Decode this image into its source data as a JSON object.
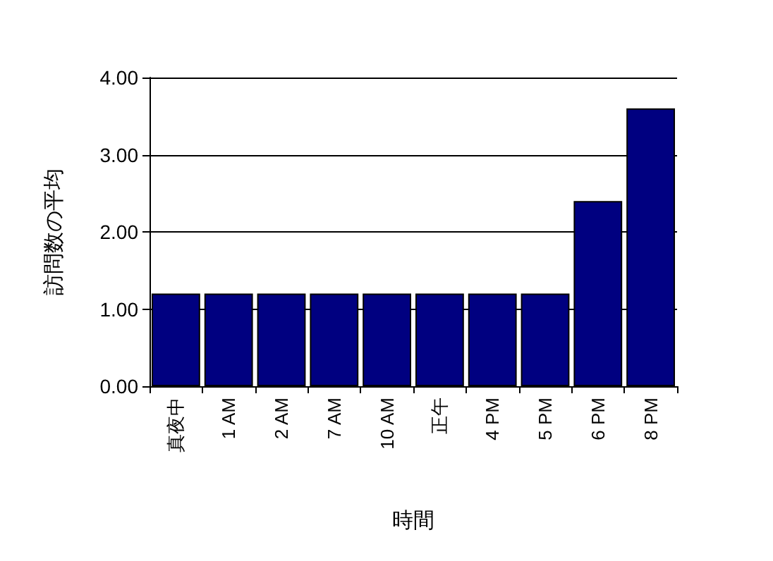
{
  "chart_data": {
    "type": "bar",
    "xlabel": "時間",
    "ylabel": "訪問数の平均",
    "categories": [
      "真夜中",
      "1 AM",
      "2 AM",
      "7 AM",
      "10 AM",
      "正午",
      "4 PM",
      "5 PM",
      "6 PM",
      "8 PM"
    ],
    "values": [
      1.2,
      1.2,
      1.2,
      1.2,
      1.2,
      1.2,
      1.2,
      1.2,
      2.4,
      3.6
    ],
    "color": "#000080",
    "ylim": [
      0,
      4
    ],
    "yticks": [
      {
        "value": 0,
        "label": "0.00"
      },
      {
        "value": 1,
        "label": "1.00"
      },
      {
        "value": 2,
        "label": "2.00"
      },
      {
        "value": 3,
        "label": "3.00"
      },
      {
        "value": 4,
        "label": "4.00"
      }
    ],
    "grid": "y"
  }
}
